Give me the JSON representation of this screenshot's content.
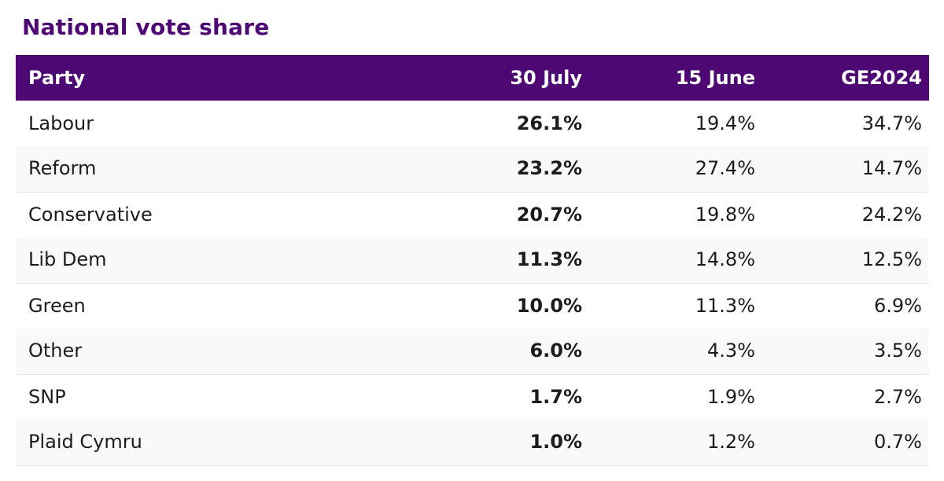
{
  "title": "National vote share",
  "chart_data": {
    "type": "table",
    "title": "National vote share",
    "columns": [
      "Party",
      "30 July",
      "15 June",
      "GE2024"
    ],
    "rows": [
      {
        "party": "Labour",
        "jul30": "26.1%",
        "jun15": "19.4%",
        "ge2024": "34.7%"
      },
      {
        "party": "Reform",
        "jul30": "23.2%",
        "jun15": "27.4%",
        "ge2024": "14.7%"
      },
      {
        "party": "Conservative",
        "jul30": "20.7%",
        "jun15": "19.8%",
        "ge2024": "24.2%"
      },
      {
        "party": "Lib Dem",
        "jul30": "11.3%",
        "jun15": "14.8%",
        "ge2024": "12.5%"
      },
      {
        "party": "Green",
        "jul30": "10.0%",
        "jun15": "11.3%",
        "ge2024": "6.9%"
      },
      {
        "party": "Other",
        "jul30": "6.0%",
        "jun15": "4.3%",
        "ge2024": "3.5%"
      },
      {
        "party": "SNP",
        "jul30": "1.7%",
        "jun15": "1.9%",
        "ge2024": "2.7%"
      },
      {
        "party": "Plaid Cymru",
        "jul30": "1.0%",
        "jun15": "1.2%",
        "ge2024": "0.7%"
      }
    ]
  },
  "colors": {
    "header_background": "#4e0873",
    "title_text": "#4e0873",
    "stripe_background": "#f9f9f7"
  }
}
